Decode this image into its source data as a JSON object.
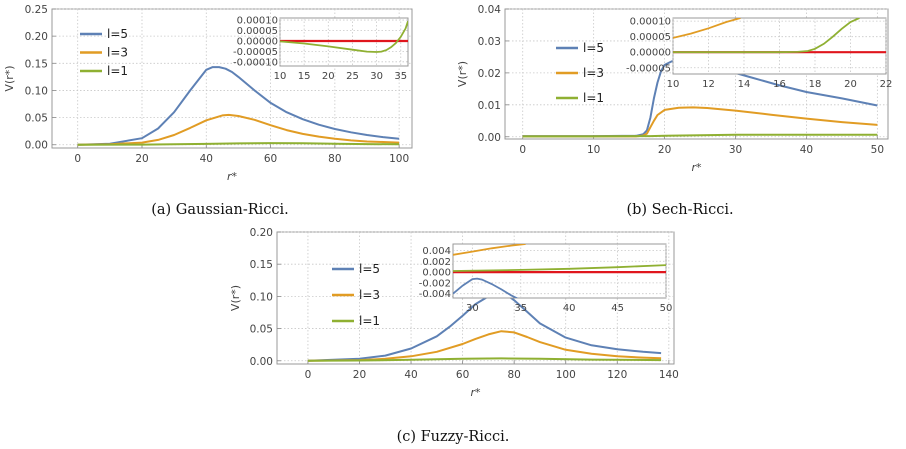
{
  "chart_data": [
    {
      "type": "line",
      "caption": "(a) Gaussian-Ricci.",
      "xlabel": "r*",
      "ylabel": "V(r*)",
      "xlim": [
        -8,
        104
      ],
      "ylim": [
        -0.006,
        0.25
      ],
      "xticks": [
        "0",
        "20",
        "40",
        "60",
        "80",
        "100"
      ],
      "yticks": [
        "0.00",
        "0.05",
        "0.10",
        "0.15",
        "0.20",
        "0.25"
      ],
      "grid": true,
      "legend": "top-left",
      "series": [
        {
          "name": "l=5",
          "color": "#5e81b5",
          "x": [
            0,
            10,
            20,
            25,
            30,
            35,
            40,
            42,
            44,
            46,
            48,
            50,
            55,
            60,
            65,
            70,
            75,
            80,
            85,
            90,
            95,
            100
          ],
          "y": [
            0,
            0.002,
            0.012,
            0.03,
            0.06,
            0.1,
            0.138,
            0.143,
            0.143,
            0.14,
            0.134,
            0.125,
            0.1,
            0.077,
            0.06,
            0.047,
            0.037,
            0.029,
            0.023,
            0.018,
            0.014,
            0.011
          ]
        },
        {
          "name": "l=3",
          "color": "#e19c24",
          "x": [
            0,
            10,
            20,
            25,
            30,
            35,
            40,
            45,
            47,
            50,
            55,
            60,
            65,
            70,
            75,
            80,
            85,
            90,
            95,
            100
          ],
          "y": [
            0,
            0.001,
            0.004,
            0.009,
            0.018,
            0.031,
            0.045,
            0.054,
            0.055,
            0.053,
            0.046,
            0.036,
            0.027,
            0.02,
            0.015,
            0.011,
            0.008,
            0.006,
            0.005,
            0.004
          ]
        },
        {
          "name": "l=1",
          "color": "#8fb032",
          "x": [
            0,
            20,
            40,
            50,
            60,
            70,
            80,
            90,
            100
          ],
          "y": [
            0,
            0.0003,
            0.0015,
            0.0025,
            0.003,
            0.0027,
            0.002,
            0.0012,
            0.0008
          ]
        }
      ],
      "inset": {
        "xlim": [
          10,
          36.5
        ],
        "ylim": [
          -0.00012,
          0.00011
        ],
        "xticks": [
          "10",
          "15",
          "20",
          "25",
          "30",
          "35"
        ],
        "yticks": [
          "0.00010",
          "0.00005",
          "0.00000",
          "-0.00005",
          "-0.00010"
        ],
        "series": [
          {
            "name": "zero",
            "color": "#e0161d",
            "x": [
              10,
              36.5
            ],
            "y": [
              0,
              0
            ]
          },
          {
            "name": "l=1",
            "color": "#8fb032",
            "x": [
              10,
              15,
              20,
              25,
              28,
              30,
              31,
              32,
              33,
              34,
              35,
              36,
              36.5
            ],
            "y": [
              -2e-06,
              -1.2e-05,
              -2.6e-05,
              -4.2e-05,
              -5.1e-05,
              -5.3e-05,
              -5.1e-05,
              -4.4e-05,
              -3e-05,
              -1e-05,
              2e-05,
              6e-05,
              9.5e-05
            ]
          }
        ]
      }
    },
    {
      "type": "line",
      "caption": "(b) Sech-Ricci.",
      "xlabel": "r*",
      "ylabel": "V(r*)",
      "xlim": [
        -2.5,
        51.5
      ],
      "ylim": [
        -0.0007,
        0.04
      ],
      "xticks": [
        "0",
        "10",
        "20",
        "30",
        "40",
        "50"
      ],
      "yticks": [
        "0.00",
        "0.01",
        "0.02",
        "0.03",
        "0.04"
      ],
      "grid": true,
      "legend": "middle-left",
      "series": [
        {
          "name": "l=5",
          "color": "#5e81b5",
          "x": [
            0,
            10,
            16,
            17,
            17.5,
            18,
            18.5,
            19,
            19.5,
            20,
            21,
            22,
            23,
            25,
            28,
            32,
            36,
            40,
            45,
            50
          ],
          "y": [
            0.0002,
            0.0002,
            0.0003,
            0.0008,
            0.002,
            0.006,
            0.012,
            0.017,
            0.0205,
            0.0225,
            0.0236,
            0.024,
            0.0239,
            0.023,
            0.0212,
            0.0187,
            0.0162,
            0.014,
            0.012,
            0.0098
          ]
        },
        {
          "name": "l=3",
          "color": "#e19c24",
          "x": [
            0,
            10,
            16,
            17,
            17.5,
            18,
            18.5,
            19,
            20,
            22,
            24,
            26,
            30,
            35,
            40,
            45,
            50
          ],
          "y": [
            0.0001,
            0.0001,
            0.0001,
            0.0004,
            0.001,
            0.003,
            0.005,
            0.0068,
            0.0084,
            0.0091,
            0.0092,
            0.009,
            0.0082,
            0.0069,
            0.0057,
            0.0046,
            0.0037
          ]
        },
        {
          "name": "l=1",
          "color": "#8fb032",
          "x": [
            0,
            10,
            18,
            20,
            25,
            30,
            40,
            50
          ],
          "y": [
            0.0001,
            0.0001,
            0.0002,
            0.0003,
            0.0005,
            0.0006,
            0.0006,
            0.0006
          ]
        }
      ],
      "inset": {
        "xlim": [
          10,
          22
        ],
        "ylim": [
          -7e-05,
          0.00011
        ],
        "xticks": [
          "10",
          "12",
          "14",
          "16",
          "18",
          "20",
          "22"
        ],
        "yticks": [
          "0.00010",
          "0.00005",
          "0.00000",
          "-0.00005"
        ],
        "series": [
          {
            "name": "zero",
            "color": "#e0161d",
            "x": [
              10,
              22
            ],
            "y": [
              0,
              0
            ]
          },
          {
            "name": "l=3",
            "color": "#e19c24",
            "x": [
              10,
              11,
              12,
              13,
              13.8
            ],
            "y": [
              4.6e-05,
              6e-05,
              7.7e-05,
              9.7e-05,
              0.00011
            ]
          },
          {
            "name": "l=1",
            "color": "#8fb032",
            "x": [
              10,
              16,
              17,
              17.6,
              18,
              18.5,
              19,
              19.5,
              20,
              20.5
            ],
            "y": [
              0,
              0,
              1e-06,
              4e-06,
              1.1e-05,
              2.7e-05,
              5e-05,
              7.5e-05,
              9.7e-05,
              0.00011
            ]
          }
        ]
      }
    },
    {
      "type": "line",
      "caption": "(c) Fuzzy-Ricci.",
      "xlabel": "r*",
      "ylabel": "V(r*)",
      "xlim": [
        -12,
        142
      ],
      "ylim": [
        -0.005,
        0.2
      ],
      "xticks": [
        "0",
        "20",
        "40",
        "60",
        "80",
        "100",
        "120",
        "140"
      ],
      "yticks": [
        "0.00",
        "0.05",
        "0.10",
        "0.15",
        "0.20"
      ],
      "grid": true,
      "legend": "middle-left",
      "series": [
        {
          "name": "l=5",
          "color": "#5e81b5",
          "x": [
            0,
            20,
            30,
            40,
            50,
            55,
            60,
            65,
            70,
            72,
            74,
            76,
            78,
            80,
            85,
            90,
            100,
            110,
            120,
            130,
            137
          ],
          "y": [
            0,
            0.003,
            0.008,
            0.019,
            0.038,
            0.053,
            0.07,
            0.088,
            0.1,
            0.103,
            0.104,
            0.103,
            0.1,
            0.094,
            0.076,
            0.058,
            0.036,
            0.024,
            0.018,
            0.014,
            0.012
          ]
        },
        {
          "name": "l=3",
          "color": "#e19c24",
          "x": [
            0,
            20,
            30,
            40,
            50,
            60,
            65,
            70,
            75,
            80,
            85,
            90,
            100,
            110,
            120,
            130,
            137
          ],
          "y": [
            0,
            0.001,
            0.003,
            0.007,
            0.014,
            0.026,
            0.034,
            0.041,
            0.046,
            0.044,
            0.037,
            0.029,
            0.017,
            0.011,
            0.007,
            0.005,
            0.004
          ]
        },
        {
          "name": "l=1",
          "color": "#8fb032",
          "x": [
            0,
            20,
            40,
            60,
            75,
            90,
            110,
            137
          ],
          "y": [
            0,
            0.0004,
            0.0015,
            0.003,
            0.0037,
            0.003,
            0.0018,
            0.001
          ]
        }
      ],
      "inset": {
        "xlim": [
          28,
          50
        ],
        "ylim": [
          -0.0048,
          0.0052
        ],
        "xticks": [
          "30",
          "35",
          "40",
          "45",
          "50"
        ],
        "yticks": [
          "0.004",
          "0.002",
          "0.000",
          "-0.002",
          "-0.004"
        ],
        "series": [
          {
            "name": "zero",
            "color": "#e0161d",
            "x": [
              28,
              50
            ],
            "y": [
              0,
              0
            ]
          },
          {
            "name": "l=3",
            "color": "#e19c24",
            "x": [
              28,
              30,
              32,
              34,
              35.5
            ],
            "y": [
              0.0032,
              0.0038,
              0.0044,
              0.0049,
              0.0052
            ]
          },
          {
            "name": "l=1",
            "color": "#8fb032",
            "x": [
              28,
              35,
              40,
              45,
              50
            ],
            "y": [
              0.0002,
              0.0004,
              0.0006,
              0.0009,
              0.0013
            ]
          },
          {
            "name": "l=5",
            "color": "#5e81b5",
            "x": [
              28,
              29,
              30,
              30.5,
              31,
              32,
              33,
              34,
              35
            ],
            "y": [
              -0.004,
              -0.0025,
              -0.0013,
              -0.0012,
              -0.0014,
              -0.0022,
              -0.0032,
              -0.0043,
              -0.0052
            ]
          }
        ]
      }
    }
  ]
}
